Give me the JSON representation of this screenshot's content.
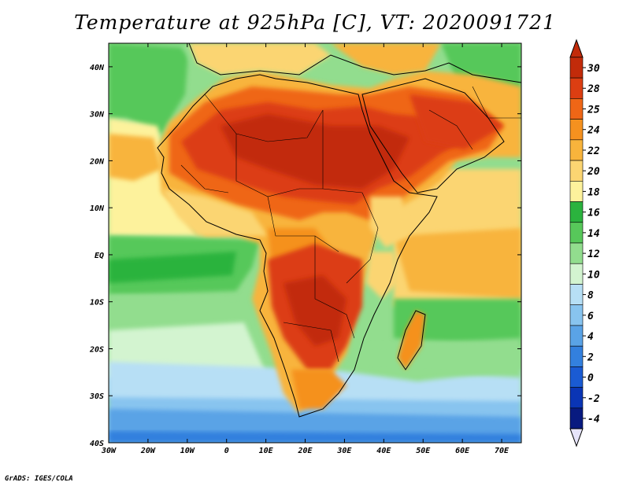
{
  "title": "Temperature at 925hPa [C], VT: 2020091721",
  "credit": "GrADS: IGES/COLA",
  "map": {
    "region": "Africa",
    "variable": "Temperature at 925hPa",
    "units": "C",
    "lon_range": [
      -30,
      75
    ],
    "lat_range": [
      -40,
      45
    ],
    "lat_ticks": [
      {
        "value": 40,
        "label": "40N"
      },
      {
        "value": 30,
        "label": "30N"
      },
      {
        "value": 20,
        "label": "20N"
      },
      {
        "value": 10,
        "label": "10N"
      },
      {
        "value": 0,
        "label": "EQ"
      },
      {
        "value": -10,
        "label": "10S"
      },
      {
        "value": -20,
        "label": "20S"
      },
      {
        "value": -30,
        "label": "30S"
      },
      {
        "value": -40,
        "label": "40S"
      }
    ],
    "lon_ticks": [
      {
        "value": -30,
        "label": "30W"
      },
      {
        "value": -20,
        "label": "20W"
      },
      {
        "value": -10,
        "label": "10W"
      },
      {
        "value": 0,
        "label": "0"
      },
      {
        "value": 10,
        "label": "10E"
      },
      {
        "value": 20,
        "label": "20E"
      },
      {
        "value": 30,
        "label": "30E"
      },
      {
        "value": 40,
        "label": "40E"
      },
      {
        "value": 50,
        "label": "50E"
      },
      {
        "value": 60,
        "label": "60E"
      },
      {
        "value": 70,
        "label": "70E"
      }
    ]
  },
  "colorbar": {
    "levels": [
      {
        "label": "30",
        "color": "#c22b0a"
      },
      {
        "label": "28",
        "color": "#dc3e12"
      },
      {
        "label": "25",
        "color": "#ef6616"
      },
      {
        "label": "24",
        "color": "#f5911f"
      },
      {
        "label": "22",
        "color": "#f8b43c"
      },
      {
        "label": "20",
        "color": "#fbd572"
      },
      {
        "label": "18",
        "color": "#fdf29c"
      },
      {
        "label": "16",
        "color": "#2bb33e"
      },
      {
        "label": "14",
        "color": "#57c85a"
      },
      {
        "label": "12",
        "color": "#92dd8e"
      },
      {
        "label": "10",
        "color": "#d3f4d0"
      },
      {
        "label": "8",
        "color": "#b7dff5"
      },
      {
        "label": "6",
        "color": "#88c4ef"
      },
      {
        "label": "4",
        "color": "#5aa3e6"
      },
      {
        "label": "2",
        "color": "#3380de"
      },
      {
        "label": "0",
        "color": "#1a5bd3"
      },
      {
        "label": "-2",
        "color": "#0a35b5"
      },
      {
        "label": "-4",
        "color": "#081a80"
      }
    ],
    "above_color": "#c22b0a",
    "below_color": "#e6e4fb"
  }
}
